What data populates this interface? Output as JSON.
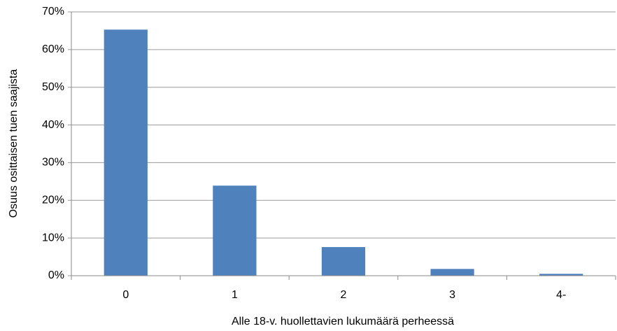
{
  "chart_data": {
    "type": "bar",
    "x_label": "Alle 18-v. huollettavien lukumäärä perheessä",
    "y_label": "Osuus osittaisen tuen saajista",
    "categories": [
      "0",
      "1",
      "2",
      "3",
      "4-"
    ],
    "values": [
      65.3,
      23.9,
      7.6,
      1.8,
      0.5
    ],
    "color": "#4f81bd",
    "ylim": [
      0,
      70
    ],
    "yticks": [
      {
        "value": 0,
        "label": "0%"
      },
      {
        "value": 10,
        "label": "10%"
      },
      {
        "value": 20,
        "label": "20%"
      },
      {
        "value": 30,
        "label": "30%"
      },
      {
        "value": 40,
        "label": "40%"
      },
      {
        "value": 50,
        "label": "50%"
      },
      {
        "value": 60,
        "label": "60%"
      },
      {
        "value": 70,
        "label": "70%"
      }
    ],
    "grid": true
  }
}
